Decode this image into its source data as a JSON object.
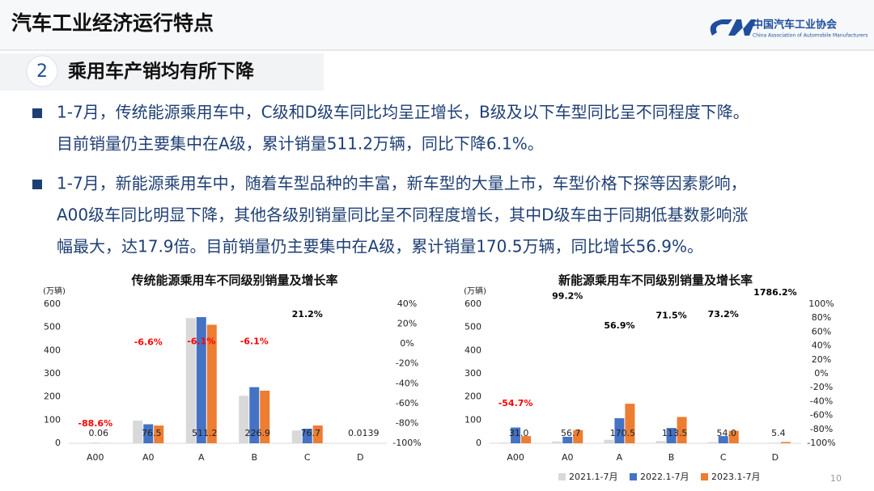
{
  "header": {
    "title": "汽车工业经济运行特点",
    "logo_cn": "中国汽车工业协会",
    "logo_en": "China Association of Automobile Manufacturers"
  },
  "section": {
    "number": "2",
    "title": "乘用车产销均有所下降"
  },
  "bullets": [
    [
      "1-7月，传统能源乘用车中，C级和D级车同比均呈正增长，B级及以下车型同比呈不同程度下降。",
      "目前销量仍主要集中在A级，累计销量511.2万辆，同比下降6.1%。"
    ],
    [
      "1-7月，新能源乘用车中，随着车型品种的丰富，新车型的大量上市，车型价格下探等因素影响，",
      "A00级车同比明显下降，其他各级别销量同比呈不同程度增长，其中D级车由于同期低基数影响涨",
      "幅最大，达17.9倍。目前销量仍主要集中在A级，累计销量170.5万辆，同比增长56.9%。"
    ]
  ],
  "page_number": "10",
  "chart_data": [
    {
      "type": "bar",
      "title": "传统能源乘用车不同级别销量及增长率",
      "y_unit": "(万辆)",
      "categories": [
        "A00",
        "A0",
        "A",
        "B",
        "C",
        "D"
      ],
      "series": [
        {
          "color": "#d9d9d9",
          "values": [
            0.5,
            98,
            540,
            205,
            55,
            0.01
          ]
        },
        {
          "color": "#4472c4",
          "values": [
            0.5,
            82,
            544,
            242,
            63,
            0.01
          ]
        },
        {
          "color": "#ed7d31",
          "values": [
            0.06,
            76.5,
            511.2,
            226.9,
            76.7,
            0.0139
          ],
          "value_labels": [
            "0.06",
            "76.5",
            "511.2",
            "226.9",
            "76.7",
            "0.0139"
          ]
        },
        {
          "type": "label",
          "axis": "y2",
          "color": "#000000",
          "negative_color": "#ff0000",
          "values": [
            -88.6,
            -6.6,
            -6.1,
            -6.1,
            21.2,
            null
          ],
          "value_labels": [
            "-88.6%",
            "-6.6%",
            "-6.1%",
            "-6.1%",
            "21.2%",
            null
          ]
        }
      ],
      "ylim": [
        0,
        600
      ],
      "yticks": [
        0,
        100,
        200,
        300,
        400,
        500,
        600
      ],
      "y2lim": [
        -100,
        40
      ],
      "y2ticks": [
        {
          "value": 40,
          "label": "40%"
        },
        {
          "value": 20,
          "label": "20%"
        },
        {
          "value": 0,
          "label": "0%"
        },
        {
          "value": -20,
          "label": "-20%"
        },
        {
          "value": -40,
          "label": "-40%"
        },
        {
          "value": -60,
          "label": "-60%"
        },
        {
          "value": -80,
          "label": "-80%"
        },
        {
          "value": -100,
          "label": "-100%"
        }
      ]
    },
    {
      "type": "bar",
      "title": "新能源乘用车不同级别销量及增长率",
      "y_unit": "(万辆)",
      "categories": [
        "A00",
        "A0",
        "A",
        "B",
        "C",
        "D"
      ],
      "series": [
        {
          "name": "2021.1-7月",
          "color": "#d9d9d9",
          "values": [
            3,
            8,
            15,
            10,
            5,
            0.1
          ]
        },
        {
          "name": "2022.1-7月",
          "color": "#4472c4",
          "values": [
            68,
            28,
            108,
            66,
            31,
            0.3
          ]
        },
        {
          "name": "2023.1-7月",
          "color": "#ed7d31",
          "values": [
            31.0,
            56.7,
            170.5,
            113.5,
            54.0,
            5.4
          ],
          "value_labels": [
            "31.0",
            "56.7",
            "170.5",
            "113.5",
            "54.0",
            "5.4"
          ]
        },
        {
          "type": "label",
          "axis": "y2",
          "color": "#000000",
          "negative_color": "#ff0000",
          "values": [
            -54.7,
            99.2,
            56.9,
            71.5,
            73.2,
            1786.2
          ],
          "value_labels": [
            "-54.7%",
            "99.2%",
            "56.9%",
            "71.5%",
            "73.2%",
            "1786.2%"
          ]
        }
      ],
      "ylim": [
        0,
        600
      ],
      "yticks": [
        0,
        100,
        200,
        300,
        400,
        500,
        600
      ],
      "y2lim": [
        -100,
        100
      ],
      "y2ticks": [
        {
          "value": 100,
          "label": "100%"
        },
        {
          "value": 80,
          "label": "80%"
        },
        {
          "value": 60,
          "label": "60%"
        },
        {
          "value": 40,
          "label": "40%"
        },
        {
          "value": 20,
          "label": "20%"
        },
        {
          "value": 0,
          "label": "0%"
        },
        {
          "value": -20,
          "label": "-20%"
        },
        {
          "value": -40,
          "label": "-40%"
        },
        {
          "value": -60,
          "label": "-60%"
        },
        {
          "value": -80,
          "label": "-80%"
        },
        {
          "value": -100,
          "label": "-100%"
        }
      ]
    }
  ]
}
